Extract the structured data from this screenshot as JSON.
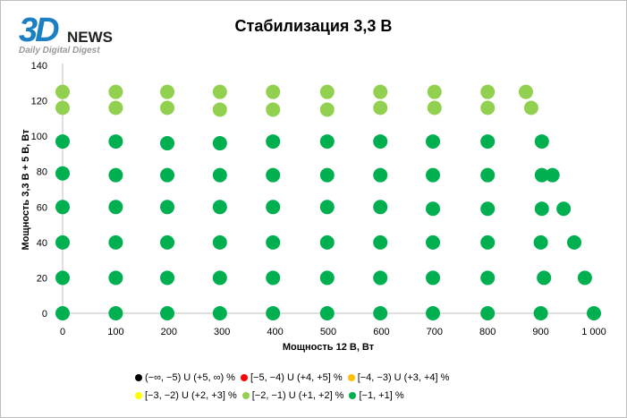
{
  "logo": {
    "brand": "3D",
    "brand2": "NEWS",
    "tagline": "Daily Digital Digest"
  },
  "chart_data": {
    "type": "scatter",
    "title": "Стабилизация 3,3 В",
    "xlabel": "Мощность  12 В, Вт",
    "ylabel": "Мощность  3,3 В + 5 В, Вт",
    "xlim": [
      0,
      1000
    ],
    "ylim": [
      0,
      140
    ],
    "xticks": [
      0,
      100,
      200,
      300,
      400,
      500,
      600,
      700,
      800,
      900,
      1000
    ],
    "xtick_labels": [
      "0",
      "100",
      "200",
      "300",
      "400",
      "500",
      "600",
      "700",
      "800",
      "900",
      "1 000"
    ],
    "yticks": [
      0,
      20,
      40,
      60,
      80,
      100,
      120,
      140
    ],
    "ytick_labels": [
      "0",
      "20",
      "40",
      "60",
      "80",
      "100",
      "120",
      "140"
    ],
    "legend": [
      {
        "label": "(−∞, −5) U (+5, ∞) %",
        "color": "#000000"
      },
      {
        "label": "[−5, −4) U (+4, +5] %",
        "color": "#ff0000"
      },
      {
        "label": "[−4, −3) U (+3, +4] %",
        "color": "#ffc000"
      },
      {
        "label": "[−3, −2) U (+2, +3] %",
        "color": "#ffff00"
      },
      {
        "label": "[−2, −1) U (+1, +2] %",
        "color": "#92d050"
      },
      {
        "label": "[−1, +1] %",
        "color": "#00b050"
      }
    ],
    "series": [
      {
        "name": "[−2, −1) U (+1, +2] %",
        "color": "#92d050",
        "points": [
          [
            0,
            125
          ],
          [
            100,
            125
          ],
          [
            197,
            125
          ],
          [
            296,
            125
          ],
          [
            396,
            125
          ],
          [
            498,
            125
          ],
          [
            598,
            125
          ],
          [
            700,
            125
          ],
          [
            800,
            125
          ],
          [
            872,
            125
          ],
          [
            0,
            116
          ],
          [
            100,
            116
          ],
          [
            197,
            116
          ],
          [
            296,
            115
          ],
          [
            396,
            115
          ],
          [
            498,
            115
          ],
          [
            598,
            116
          ],
          [
            700,
            116
          ],
          [
            800,
            116
          ],
          [
            882,
            116
          ]
        ]
      },
      {
        "name": "[−1, +1] %",
        "color": "#00b050",
        "points": [
          [
            0,
            97
          ],
          [
            100,
            97
          ],
          [
            197,
            96
          ],
          [
            296,
            96
          ],
          [
            396,
            97
          ],
          [
            498,
            97
          ],
          [
            598,
            97
          ],
          [
            697,
            97
          ],
          [
            800,
            97
          ],
          [
            902,
            97
          ],
          [
            0,
            79
          ],
          [
            100,
            78
          ],
          [
            197,
            78
          ],
          [
            296,
            78
          ],
          [
            396,
            78
          ],
          [
            498,
            78
          ],
          [
            598,
            78
          ],
          [
            697,
            78
          ],
          [
            800,
            78
          ],
          [
            902,
            78
          ],
          [
            922,
            78
          ],
          [
            0,
            60
          ],
          [
            100,
            60
          ],
          [
            197,
            60
          ],
          [
            296,
            60
          ],
          [
            396,
            60
          ],
          [
            498,
            60
          ],
          [
            598,
            60
          ],
          [
            697,
            59
          ],
          [
            800,
            59
          ],
          [
            902,
            59
          ],
          [
            943,
            59
          ],
          [
            0,
            40
          ],
          [
            100,
            40
          ],
          [
            197,
            40
          ],
          [
            296,
            40
          ],
          [
            396,
            40
          ],
          [
            498,
            40
          ],
          [
            598,
            40
          ],
          [
            697,
            40
          ],
          [
            800,
            40
          ],
          [
            900,
            40
          ],
          [
            963,
            40
          ],
          [
            0,
            20
          ],
          [
            100,
            20
          ],
          [
            197,
            20
          ],
          [
            296,
            20
          ],
          [
            396,
            20
          ],
          [
            498,
            20
          ],
          [
            598,
            20
          ],
          [
            697,
            20
          ],
          [
            800,
            20
          ],
          [
            906,
            20
          ],
          [
            983,
            20
          ],
          [
            0,
            0
          ],
          [
            100,
            0
          ],
          [
            197,
            0
          ],
          [
            296,
            0
          ],
          [
            396,
            0
          ],
          [
            498,
            0
          ],
          [
            598,
            0
          ],
          [
            697,
            0
          ],
          [
            800,
            0
          ],
          [
            900,
            0
          ],
          [
            1000,
            0
          ]
        ]
      }
    ]
  }
}
